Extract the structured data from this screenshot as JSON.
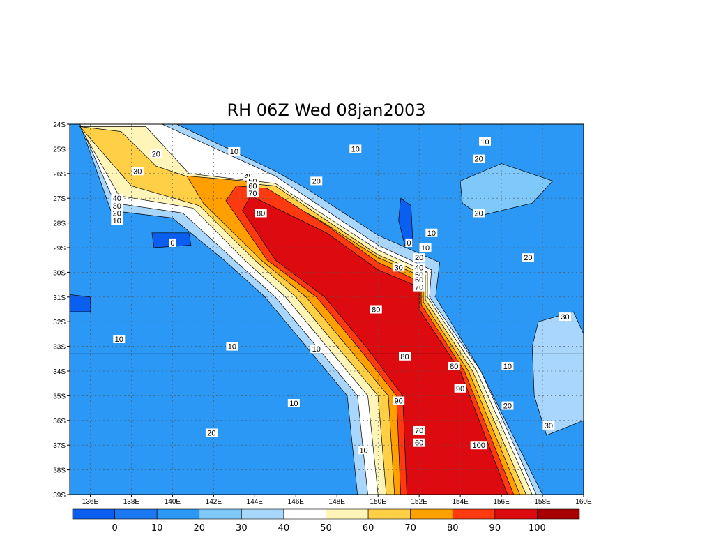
{
  "chart_data": {
    "type": "heatmap",
    "title": "RH 06Z Wed 08jan2003",
    "variable": "RH",
    "x_ticks": [
      "136E",
      "138E",
      "140E",
      "142E",
      "144E",
      "146E",
      "148E",
      "150E",
      "152E",
      "154E",
      "156E",
      "158E",
      "160E"
    ],
    "y_ticks": [
      "24S",
      "25S",
      "26S",
      "27S",
      "28S",
      "29S",
      "30S",
      "31S",
      "32S",
      "33S",
      "34S",
      "35S",
      "36S",
      "37S",
      "38S",
      "39S"
    ],
    "xlim": [
      135,
      160
    ],
    "ylim": [
      -39,
      -24
    ],
    "grid": true,
    "colorbar": {
      "levels": [
        "0",
        "10",
        "20",
        "30",
        "40",
        "50",
        "60",
        "70",
        "80",
        "90",
        "100"
      ],
      "colors": [
        "#0a5ef0",
        "#1c78f0",
        "#2b98f5",
        "#7ec8fa",
        "#a9d6fc",
        "#ffffff",
        "#fff5b8",
        "#ffd046",
        "#ffa000",
        "#ff3a10",
        "#dd0b10",
        "#a80000"
      ]
    },
    "contour_labels": [
      {
        "text": "10",
        "lon": 143,
        "lat": -25.1
      },
      {
        "text": "10",
        "lon": 148.9,
        "lat": -25.0
      },
      {
        "text": "10",
        "lon": 155.2,
        "lat": -24.7
      },
      {
        "text": "20",
        "lon": 139.2,
        "lat": -25.2
      },
      {
        "text": "20",
        "lon": 147.0,
        "lat": -26.3
      },
      {
        "text": "20",
        "lon": 154.9,
        "lat": -25.4
      },
      {
        "text": "20",
        "lon": 154.9,
        "lat": -27.6
      },
      {
        "text": "20",
        "lon": 157.3,
        "lat": -29.4
      },
      {
        "text": "20",
        "lon": 152.0,
        "lat": -29.4
      },
      {
        "text": "30",
        "lon": 138.3,
        "lat": -25.9
      },
      {
        "text": "30",
        "lon": 151.0,
        "lat": -29.8
      },
      {
        "text": "30",
        "lon": 159.1,
        "lat": -31.8
      },
      {
        "text": "30",
        "lon": 158.3,
        "lat": -36.2
      },
      {
        "text": "40",
        "lon": 137.3,
        "lat": -27.0
      },
      {
        "text": "30",
        "lon": 137.3,
        "lat": -27.3
      },
      {
        "text": "20",
        "lon": 137.3,
        "lat": -27.6
      },
      {
        "text": "10",
        "lon": 137.3,
        "lat": -27.9
      },
      {
        "text": "40",
        "lon": 143.7,
        "lat": -26.1
      },
      {
        "text": "50",
        "lon": 143.9,
        "lat": -26.3
      },
      {
        "text": "60",
        "lon": 143.9,
        "lat": -26.5
      },
      {
        "text": "70",
        "lon": 143.9,
        "lat": -26.8
      },
      {
        "text": "40",
        "lon": 152.0,
        "lat": -29.8
      },
      {
        "text": "50",
        "lon": 152.0,
        "lat": -30.1
      },
      {
        "text": "60",
        "lon": 152.0,
        "lat": -30.3
      },
      {
        "text": "70",
        "lon": 152.0,
        "lat": -30.6
      },
      {
        "text": "80",
        "lon": 144.3,
        "lat": -27.6
      },
      {
        "text": "80",
        "lon": 149.9,
        "lat": -31.5
      },
      {
        "text": "80",
        "lon": 151.3,
        "lat": -33.4
      },
      {
        "text": "80",
        "lon": 153.7,
        "lat": -33.8
      },
      {
        "text": "90",
        "lon": 151.0,
        "lat": -35.2
      },
      {
        "text": "90",
        "lon": 154.0,
        "lat": -34.7
      },
      {
        "text": "100",
        "lon": 154.9,
        "lat": -37.0
      },
      {
        "text": "70",
        "lon": 152.0,
        "lat": -36.4
      },
      {
        "text": "60",
        "lon": 152.0,
        "lat": -36.9
      },
      {
        "text": "0",
        "lon": 140.0,
        "lat": -28.8
      },
      {
        "text": "0",
        "lon": 151.5,
        "lat": -28.8
      },
      {
        "text": "10",
        "lon": 152.6,
        "lat": -28.4
      },
      {
        "text": "10",
        "lon": 152.3,
        "lat": -29.0
      },
      {
        "text": "10",
        "lon": 137.4,
        "lat": -32.7
      },
      {
        "text": "10",
        "lon": 142.9,
        "lat": -33.0
      },
      {
        "text": "10",
        "lon": 147.0,
        "lat": -33.1
      },
      {
        "text": "10",
        "lon": 156.3,
        "lat": -33.8
      },
      {
        "text": "10",
        "lon": 145.9,
        "lat": -35.3
      },
      {
        "text": "10",
        "lon": 149.3,
        "lat": -37.2
      },
      {
        "text": "20",
        "lon": 156.3,
        "lat": -35.4
      },
      {
        "text": "20",
        "lon": 141.9,
        "lat": -36.5
      }
    ],
    "rh_blobs": [
      {
        "level": 5,
        "points": [
          [
            135.5,
            -24
          ],
          [
            140.2,
            -24
          ],
          [
            145,
            -25.9
          ],
          [
            146.5,
            -26.6
          ],
          [
            150,
            -28.5
          ],
          [
            153,
            -29.6
          ],
          [
            152.8,
            -31
          ],
          [
            155,
            -34
          ],
          [
            158,
            -39
          ],
          [
            149,
            -39
          ],
          [
            148.5,
            -35
          ],
          [
            146.5,
            -33
          ],
          [
            144.5,
            -31
          ],
          [
            142.5,
            -29.5
          ],
          [
            140,
            -27.8
          ],
          [
            137,
            -27.5
          ]
        ]
      },
      {
        "level": 4,
        "points": [
          [
            135.5,
            -24
          ],
          [
            139.5,
            -24
          ],
          [
            145,
            -26.1
          ],
          [
            150,
            -28.9
          ],
          [
            152.6,
            -29.9
          ],
          [
            152.5,
            -31
          ],
          [
            155,
            -34
          ],
          [
            157.7,
            -39
          ],
          [
            149.5,
            -39
          ],
          [
            149,
            -35
          ],
          [
            147,
            -33
          ],
          [
            145,
            -31
          ],
          [
            143,
            -29.5
          ],
          [
            140.5,
            -27.6
          ],
          [
            137.2,
            -27.2
          ]
        ]
      },
      {
        "level": 3,
        "points": [
          [
            135.5,
            -24.1
          ],
          [
            138.7,
            -24.1
          ],
          [
            140.8,
            -26.0
          ],
          [
            145,
            -26.4
          ],
          [
            150,
            -29.1
          ],
          [
            152.4,
            -30.0
          ],
          [
            152.4,
            -31.0
          ],
          [
            154.8,
            -34
          ],
          [
            157.5,
            -39
          ],
          [
            150,
            -39
          ],
          [
            149.5,
            -35
          ],
          [
            147.5,
            -33
          ],
          [
            145.5,
            -31
          ],
          [
            143.5,
            -29.5
          ],
          [
            141,
            -27.4
          ],
          [
            137.4,
            -26.9
          ]
        ]
      },
      {
        "level": 2,
        "points": [
          [
            135.5,
            -24.1
          ],
          [
            137.5,
            -24.3
          ],
          [
            139.2,
            -25.7
          ],
          [
            141,
            -26.2
          ],
          [
            145,
            -26.5
          ],
          [
            150,
            -29.3
          ],
          [
            152.3,
            -30.1
          ],
          [
            152.3,
            -31.1
          ],
          [
            154.6,
            -34
          ],
          [
            157.2,
            -39
          ],
          [
            150.4,
            -39
          ],
          [
            150,
            -35
          ],
          [
            148,
            -33
          ],
          [
            146,
            -31
          ],
          [
            144,
            -29.5
          ],
          [
            141.3,
            -27.3
          ],
          [
            138,
            -26.5
          ]
        ]
      },
      {
        "level": 1,
        "points": [
          [
            140.7,
            -26.1
          ],
          [
            143.5,
            -26.3
          ],
          [
            147,
            -27.8
          ],
          [
            150,
            -29.4
          ],
          [
            152.2,
            -30.2
          ],
          [
            152.2,
            -31.2
          ],
          [
            154.4,
            -34
          ],
          [
            156.9,
            -39
          ],
          [
            150.8,
            -39
          ],
          [
            150.5,
            -35
          ],
          [
            148.5,
            -33
          ],
          [
            146.5,
            -31
          ],
          [
            144.3,
            -29.5
          ],
          [
            141.5,
            -27.2
          ]
        ]
      },
      {
        "level": 0,
        "points": [
          [
            143.1,
            -26.5
          ],
          [
            144.6,
            -26.6
          ],
          [
            147.5,
            -28.1
          ],
          [
            150,
            -29.6
          ],
          [
            152.1,
            -30.4
          ],
          [
            152.1,
            -31.3
          ],
          [
            154.2,
            -34
          ],
          [
            156.6,
            -39
          ],
          [
            151.1,
            -39
          ],
          [
            150.9,
            -35
          ],
          [
            149,
            -33
          ],
          [
            147,
            -31
          ],
          [
            144.6,
            -29.5
          ],
          [
            142.6,
            -27.1
          ]
        ]
      },
      {
        "level": -1,
        "points": [
          [
            143.8,
            -26.9
          ],
          [
            147.5,
            -28.4
          ],
          [
            150,
            -29.9
          ],
          [
            152,
            -30.6
          ],
          [
            152,
            -31.5
          ],
          [
            154,
            -34
          ],
          [
            156.3,
            -39
          ],
          [
            151.4,
            -39
          ],
          [
            151.2,
            -35
          ],
          [
            149.4,
            -33
          ],
          [
            147.4,
            -31
          ],
          [
            145,
            -29.5
          ],
          [
            143.4,
            -27.5
          ]
        ]
      }
    ]
  }
}
